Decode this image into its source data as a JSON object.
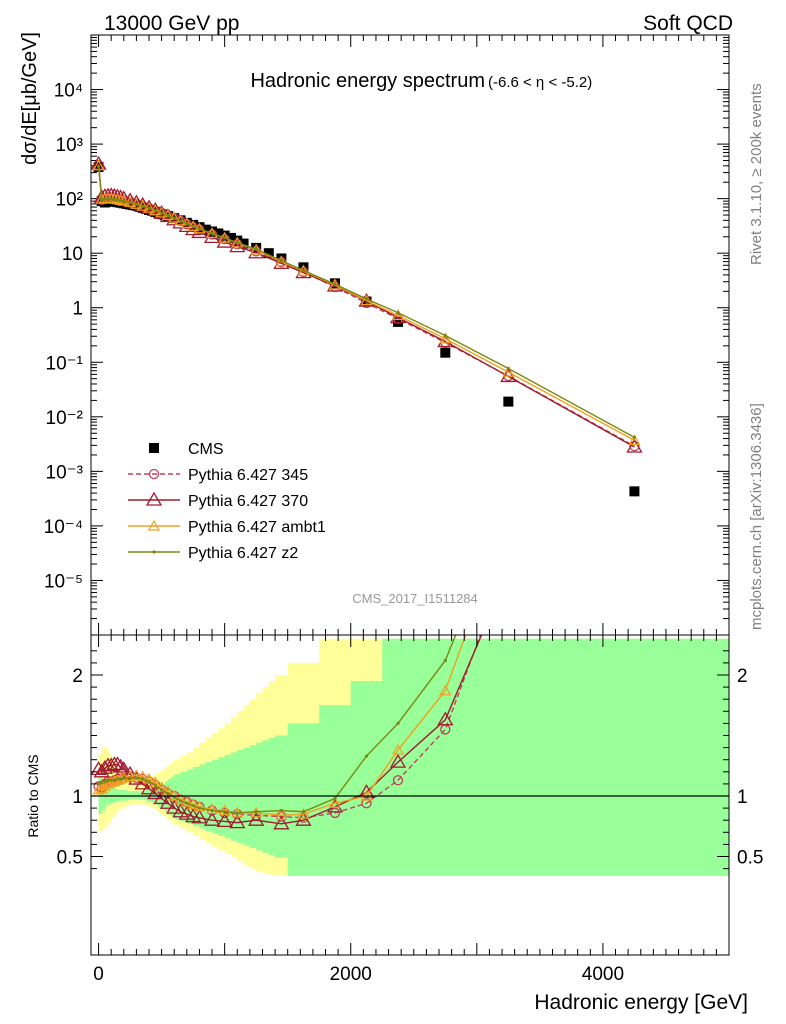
{
  "header": {
    "left": "13000 GeV pp",
    "right": "Soft QCD",
    "title": "Hadronic energy spectrum",
    "eta_range": "(-6.6 < η < -5.2)"
  },
  "side_text": {
    "rivet": "Rivet 3.1.10, ≥ 200k events",
    "mcplots": "mcplots.cern.ch [arXiv:1306.3436]"
  },
  "analysis_label": "CMS_2017_I1511284",
  "colors": {
    "cms": "#000000",
    "p345": "#c0405a",
    "p370": "#a01a30",
    "ambt1": "#f0a020",
    "z2": "#7a8a10",
    "band_inner": "#99ff99",
    "band_outer": "#ffff99"
  },
  "chart_data": [
    {
      "type": "scatter",
      "panel": "main",
      "ylabel": "dσ/dE[μb/GeV]",
      "yscale": "log",
      "ylim": [
        1e-06,
        100000.0
      ],
      "xlim": [
        -60,
        5000
      ],
      "y_ticks": [
        "10⁻⁵",
        "10⁻⁴",
        "10⁻³",
        "10⁻²",
        "10⁻¹",
        "1",
        "10",
        "10²",
        "10³",
        "10⁴"
      ],
      "legend": [
        "CMS",
        "Pythia 6.427 345",
        "Pythia 6.427 370",
        "Pythia 6.427 ambt1",
        "Pythia 6.427 z2"
      ],
      "legend_position": "bottom-left",
      "series": [
        {
          "name": "CMS",
          "x": [
            0,
            25,
            50,
            75,
            100,
            125,
            150,
            175,
            200,
            225,
            250,
            275,
            300,
            325,
            350,
            375,
            400,
            425,
            450,
            475,
            500,
            525,
            550,
            600,
            650,
            700,
            750,
            800,
            850,
            900,
            950,
            1000,
            1050,
            1100,
            1150,
            1250,
            1350,
            1450,
            1625,
            1875,
            2125,
            2375,
            2750,
            3250,
            4250
          ],
          "y": [
            380,
            90,
            85,
            88,
            90,
            88,
            86,
            84,
            82,
            80,
            78,
            76,
            74,
            71,
            68,
            65,
            62,
            60,
            57,
            54,
            52,
            50,
            48,
            44,
            40,
            36,
            33,
            30,
            27,
            25,
            23,
            21,
            19,
            17,
            15,
            12.5,
            10,
            8,
            5.5,
            2.8,
            1.3,
            0.55,
            0.15,
            0.019,
            0.00043
          ]
        },
        {
          "name": "Pythia 6.427 345",
          "x": [
            0,
            25,
            50,
            75,
            100,
            125,
            150,
            175,
            200,
            250,
            300,
            350,
            400,
            450,
            500,
            550,
            600,
            650,
            700,
            750,
            800,
            900,
            1000,
            1100,
            1250,
            1450,
            1625,
            1875,
            2125,
            2375,
            2750,
            3250,
            4250
          ],
          "y": [
            410,
            95,
            100,
            102,
            103,
            101,
            98,
            95,
            92,
            86,
            80,
            73,
            67,
            61,
            55,
            49,
            44,
            39,
            34,
            30,
            27,
            22,
            18,
            14.5,
            10.8,
            6.8,
            4.5,
            2.4,
            1.22,
            0.63,
            0.23,
            0.056,
            0.0029
          ]
        },
        {
          "name": "Pythia 6.427 370",
          "x": [
            0,
            25,
            50,
            75,
            100,
            125,
            150,
            175,
            200,
            250,
            300,
            350,
            400,
            450,
            500,
            550,
            600,
            650,
            700,
            750,
            800,
            900,
            1000,
            1100,
            1250,
            1450,
            1625,
            1875,
            2125,
            2375,
            2750,
            3250,
            4250
          ],
          "y": [
            430,
            105,
            110,
            112,
            114,
            111,
            108,
            104,
            100,
            92,
            84,
            76,
            68,
            61,
            54,
            47,
            41,
            36,
            31,
            27,
            24,
            19.5,
            16,
            13.2,
            10.2,
            6.5,
            4.4,
            2.5,
            1.32,
            0.66,
            0.24,
            0.055,
            0.0028
          ]
        },
        {
          "name": "Pythia 6.427 ambt1",
          "x": [
            0,
            25,
            50,
            75,
            100,
            125,
            150,
            175,
            200,
            250,
            300,
            350,
            400,
            450,
            500,
            550,
            600,
            650,
            700,
            750,
            800,
            900,
            1000,
            1100,
            1250,
            1450,
            1625,
            1875,
            2125,
            2375,
            2750,
            3250,
            4250
          ],
          "y": [
            400,
            98,
            100,
            100,
            100,
            98,
            96,
            93,
            90,
            85,
            79,
            73,
            67,
            61,
            55,
            49,
            44,
            39,
            35,
            31,
            28,
            23,
            19,
            15.5,
            11.5,
            7,
            4.7,
            2.6,
            1.35,
            0.72,
            0.27,
            0.066,
            0.0037
          ]
        },
        {
          "name": "Pythia 6.427 z2",
          "x": [
            0,
            25,
            50,
            75,
            100,
            125,
            150,
            175,
            200,
            250,
            300,
            350,
            400,
            450,
            500,
            550,
            600,
            650,
            700,
            750,
            800,
            900,
            1000,
            1100,
            1250,
            1450,
            1625,
            1875,
            2125,
            2375,
            2750,
            3250,
            4250
          ],
          "y": [
            390,
            96,
            98,
            99,
            99,
            97,
            95,
            92,
            90,
            85,
            79,
            73,
            67,
            61,
            55,
            49,
            44,
            39,
            35,
            31,
            28,
            23,
            19,
            15.7,
            11.8,
            7.3,
            4.8,
            2.7,
            1.45,
            0.81,
            0.31,
            0.077,
            0.0042
          ]
        }
      ]
    },
    {
      "type": "line",
      "panel": "ratio",
      "ylabel": "Ratio to CMS",
      "xlabel": "Hadronic energy [GeV]",
      "ylim": [
        0.34,
        2.3
      ],
      "xlim": [
        -60,
        5000
      ],
      "x_ticks": [
        0,
        2000,
        4000
      ],
      "x_tick_labels": [
        "0",
        "2000",
        "4000"
      ],
      "y_ticks": [
        0.5,
        1,
        2
      ],
      "y_tick_labels": [
        "0.5",
        "1",
        "2"
      ],
      "bands": {
        "edges": [
          0,
          25,
          50,
          75,
          100,
          125,
          150,
          175,
          200,
          225,
          250,
          275,
          300,
          325,
          350,
          375,
          400,
          425,
          450,
          475,
          500,
          525,
          550,
          575,
          600,
          650,
          700,
          750,
          800,
          850,
          900,
          950,
          1000,
          1050,
          1100,
          1150,
          1200,
          1250,
          1300,
          1350,
          1400,
          1500,
          1750,
          2000,
          2250,
          2500,
          3000,
          3500,
          5000
        ],
        "inner_low": [
          0.85,
          0.88,
          0.92,
          0.93,
          0.94,
          0.95,
          0.96,
          0.96,
          0.96,
          0.97,
          0.97,
          0.97,
          0.97,
          0.97,
          0.97,
          0.96,
          0.95,
          0.94,
          0.93,
          0.91,
          0.89,
          0.87,
          0.85,
          0.83,
          0.81,
          0.79,
          0.77,
          0.75,
          0.73,
          0.71,
          0.69,
          0.67,
          0.65,
          0.63,
          0.61,
          0.59,
          0.57,
          0.55,
          0.53,
          0.51,
          0.49,
          0.34,
          0.34,
          0.34,
          0.34,
          0.34,
          0.34,
          0.34
        ],
        "inner_high": [
          1.15,
          1.12,
          1.1,
          1.08,
          1.07,
          1.06,
          1.05,
          1.05,
          1.05,
          1.04,
          1.04,
          1.04,
          1.04,
          1.04,
          1.04,
          1.05,
          1.06,
          1.07,
          1.08,
          1.09,
          1.1,
          1.12,
          1.14,
          1.16,
          1.18,
          1.2,
          1.22,
          1.24,
          1.26,
          1.28,
          1.3,
          1.32,
          1.34,
          1.36,
          1.38,
          1.4,
          1.42,
          1.44,
          1.46,
          1.48,
          1.5,
          1.6,
          1.75,
          1.95,
          2.3,
          2.3,
          2.3,
          2.3
        ],
        "outer_low": [
          0.7,
          0.72,
          0.75,
          0.78,
          0.82,
          0.85,
          0.88,
          0.9,
          0.91,
          0.92,
          0.93,
          0.93,
          0.93,
          0.93,
          0.93,
          0.92,
          0.91,
          0.9,
          0.88,
          0.86,
          0.84,
          0.82,
          0.8,
          0.78,
          0.76,
          0.73,
          0.7,
          0.67,
          0.64,
          0.61,
          0.58,
          0.55,
          0.52,
          0.49,
          0.46,
          0.43,
          0.4,
          0.38,
          0.36,
          0.35,
          0.34,
          0.34,
          0.34,
          0.34,
          0.34,
          0.34,
          0.34,
          0.34
        ],
        "outer_high": [
          1.35,
          1.4,
          1.4,
          1.35,
          1.3,
          1.26,
          1.22,
          1.19,
          1.17,
          1.15,
          1.14,
          1.13,
          1.13,
          1.13,
          1.14,
          1.15,
          1.16,
          1.17,
          1.18,
          1.2,
          1.22,
          1.24,
          1.26,
          1.28,
          1.3,
          1.33,
          1.36,
          1.4,
          1.44,
          1.48,
          1.52,
          1.56,
          1.6,
          1.65,
          1.7,
          1.75,
          1.8,
          1.85,
          1.9,
          1.95,
          2.0,
          2.1,
          2.3,
          2.3,
          2.3,
          2.3,
          2.3,
          2.3
        ]
      },
      "series": [
        {
          "name": "Pythia 6.427 345",
          "x": [
            0,
            25,
            50,
            75,
            100,
            125,
            150,
            175,
            200,
            250,
            300,
            350,
            400,
            450,
            500,
            550,
            600,
            650,
            700,
            750,
            800,
            900,
            1000,
            1100,
            1250,
            1450,
            1625,
            1875,
            2125,
            2375,
            2750,
            3250
          ],
          "y": [
            1.08,
            1.07,
            1.1,
            1.12,
            1.12,
            1.13,
            1.14,
            1.14,
            1.15,
            1.16,
            1.15,
            1.14,
            1.12,
            1.09,
            1.05,
            1.02,
            1.0,
            0.97,
            0.95,
            0.93,
            0.91,
            0.88,
            0.86,
            0.85,
            0.84,
            0.83,
            0.82,
            0.86,
            0.94,
            1.13,
            1.55,
            2.95
          ]
        },
        {
          "name": "Pythia 6.427 370",
          "x": [
            0,
            25,
            50,
            75,
            100,
            125,
            150,
            175,
            200,
            250,
            300,
            350,
            400,
            450,
            500,
            550,
            600,
            650,
            700,
            750,
            800,
            900,
            1000,
            1100,
            1250,
            1450,
            1625,
            1875,
            2125,
            2375,
            2750,
            3250
          ],
          "y": [
            1.22,
            1.2,
            1.23,
            1.25,
            1.25,
            1.26,
            1.26,
            1.24,
            1.22,
            1.18,
            1.14,
            1.1,
            1.06,
            1.02,
            0.98,
            0.94,
            0.9,
            0.87,
            0.85,
            0.83,
            0.82,
            0.8,
            0.79,
            0.78,
            0.8,
            0.77,
            0.8,
            0.91,
            1.03,
            1.28,
            1.63,
            2.85
          ]
        },
        {
          "name": "Pythia 6.427 ambt1",
          "x": [
            0,
            25,
            50,
            75,
            100,
            125,
            150,
            175,
            200,
            250,
            300,
            350,
            400,
            450,
            500,
            550,
            600,
            650,
            700,
            750,
            800,
            900,
            1000,
            1100,
            1250,
            1450,
            1625,
            1875,
            2125,
            2375,
            2750,
            3250
          ],
          "y": [
            1.05,
            1.06,
            1.08,
            1.1,
            1.11,
            1.12,
            1.13,
            1.14,
            1.15,
            1.16,
            1.17,
            1.16,
            1.14,
            1.11,
            1.07,
            1.04,
            1.0,
            0.97,
            0.95,
            0.93,
            0.91,
            0.89,
            0.88,
            0.86,
            0.86,
            0.84,
            0.85,
            0.94,
            1.0,
            1.38,
            1.87,
            3.3
          ]
        },
        {
          "name": "Pythia 6.427 z2",
          "x": [
            0,
            25,
            50,
            75,
            100,
            125,
            150,
            175,
            200,
            250,
            300,
            350,
            400,
            450,
            500,
            550,
            600,
            650,
            700,
            750,
            800,
            900,
            1000,
            1100,
            1250,
            1450,
            1625,
            1875,
            2125,
            2375,
            2750,
            3250
          ],
          "y": [
            1.1,
            1.11,
            1.12,
            1.13,
            1.13,
            1.13,
            1.14,
            1.14,
            1.15,
            1.15,
            1.15,
            1.14,
            1.12,
            1.09,
            1.05,
            1.02,
            0.99,
            0.96,
            0.94,
            0.92,
            0.9,
            0.88,
            0.87,
            0.86,
            0.87,
            0.88,
            0.87,
            0.98,
            1.33,
            1.6,
            2.12,
            3.4
          ]
        }
      ]
    }
  ]
}
